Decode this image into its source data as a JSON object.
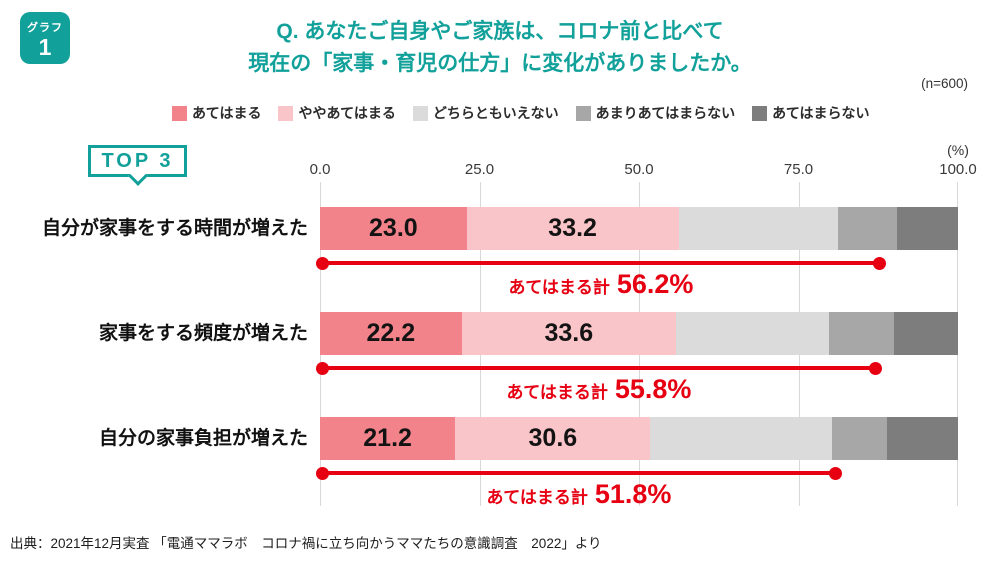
{
  "badge": {
    "top": "グラフ",
    "number": "1"
  },
  "title": {
    "line1": "Q. あなたご自身やご家族は、コロナ前と比べて",
    "line2": "現在の「家事・育児の仕方」に変化がありましたか。"
  },
  "sample_note": "(n=600)",
  "top3_label": "TOP 3",
  "axis": {
    "ticks": [
      "0.0",
      "25.0",
      "50.0",
      "75.0",
      "100.0"
    ],
    "unit": "(%)"
  },
  "colors": {
    "teal": "#12A19A",
    "annotation_red": "#E60012"
  },
  "legend": [
    {
      "label": "あてはまる",
      "color": "#F3838A"
    },
    {
      "label": "ややあてはまる",
      "color": "#FAC5C8"
    },
    {
      "label": "どちらともいえない",
      "color": "#DBDBDB"
    },
    {
      "label": "あまりあてはまらない",
      "color": "#A7A7A7"
    },
    {
      "label": "あてはまらない",
      "color": "#7D7D7D"
    }
  ],
  "rows": [
    {
      "category": "自分が家事をする時間が増えた",
      "values": [
        23.0,
        33.2,
        25.0,
        9.3,
        9.5
      ],
      "seg_labels": [
        "23.0",
        "33.2"
      ],
      "total": 56.2,
      "total_prefix": "あてはまる計",
      "total_value": "56.2%"
    },
    {
      "category": "家事をする頻度が増えた",
      "values": [
        22.2,
        33.6,
        24.0,
        10.2,
        10.0
      ],
      "seg_labels": [
        "22.2",
        "33.6"
      ],
      "total": 55.8,
      "total_prefix": "あてはまる計",
      "total_value": "55.8%"
    },
    {
      "category": "自分の家事負担が増えた",
      "values": [
        21.2,
        30.6,
        28.4,
        8.6,
        11.2
      ],
      "seg_labels": [
        "21.2",
        "30.6"
      ],
      "total": 51.8,
      "total_prefix": "あてはまる計",
      "total_value": "51.8%"
    }
  ],
  "source": "出典：2021年12月実査 「電通ママラボ　コロナ禍に立ち向かうママたちの意識調査　2022」より",
  "chart_data": {
    "type": "bar",
    "orientation": "horizontal",
    "stacked": true,
    "title": "Q. あなたご自身やご家族は、コロナ前と比べて現在の「家事・育児の仕方」に変化がありましたか。",
    "sample_size": 600,
    "categories": [
      "自分が家事をする時間が増えた",
      "家事をする頻度が増えた",
      "自分の家事負担が増えた"
    ],
    "series": [
      {
        "name": "あてはまる",
        "values": [
          23.0,
          22.2,
          21.2
        ]
      },
      {
        "name": "ややあてはまる",
        "values": [
          33.2,
          33.6,
          30.6
        ]
      },
      {
        "name": "どちらともいえない",
        "values": [
          25.0,
          24.0,
          28.4
        ]
      },
      {
        "name": "あまりあてはまらない",
        "values": [
          9.3,
          10.2,
          8.6
        ]
      },
      {
        "name": "あてはまらない",
        "values": [
          9.5,
          10.0,
          11.2
        ]
      }
    ],
    "unlabeled_series_estimated_from_pixels": [
      "どちらともいえない",
      "あまりあてはまらない",
      "あてはまらない"
    ],
    "totals": {
      "label": "あてはまる計",
      "values": [
        56.2,
        55.8,
        51.8
      ]
    },
    "xlim": [
      0,
      100
    ],
    "xticks": [
      0.0,
      25.0,
      50.0,
      75.0,
      100.0
    ],
    "xlabel": "(%)",
    "legend_position": "top",
    "grid": true
  }
}
